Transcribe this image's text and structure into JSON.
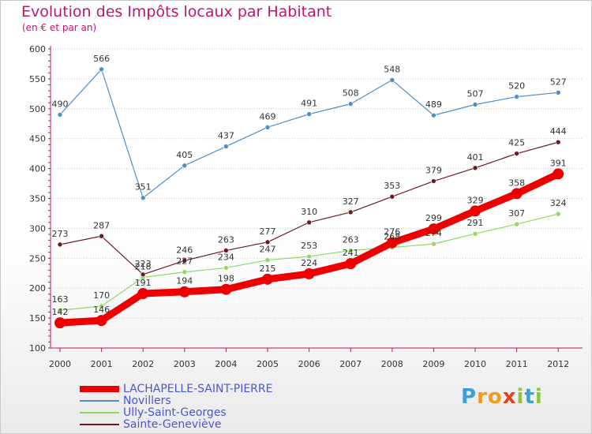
{
  "header": {
    "title": "Evolution des Impôts locaux par Habitant",
    "subtitle": "(en € et par an)"
  },
  "brand": {
    "letters": [
      {
        "char": "P",
        "color": "#3aa0d8"
      },
      {
        "char": "r",
        "color": "#f29a1f"
      },
      {
        "char": "o",
        "color": "#f29a1f"
      },
      {
        "char": "x",
        "color": "#e3431b"
      },
      {
        "char": "i",
        "color": "#8cc63f"
      },
      {
        "char": "t",
        "color": "#3aa0d8"
      },
      {
        "char": "i",
        "color": "#8cc63f"
      }
    ]
  },
  "chart_data": {
    "type": "line",
    "title": "Evolution des Impôts locaux par Habitant",
    "subtitle": "(en € et par an)",
    "xlabel": "",
    "ylabel": "",
    "categories": [
      "2000",
      "2001",
      "2002",
      "2003",
      "2004",
      "2005",
      "2006",
      "2007",
      "2008",
      "2009",
      "2010",
      "2011",
      "2012"
    ],
    "ylim": [
      100,
      600
    ],
    "yticks": [
      "100",
      "150",
      "200",
      "250",
      "300",
      "350",
      "400",
      "450",
      "500",
      "550",
      "600"
    ],
    "grid": "horizontal dotted",
    "legend_position": "bottom-left",
    "series": [
      {
        "name": "LACHAPELLE-SAINT-PIERRE",
        "color": "#ee0000",
        "width": 9,
        "marker": 7,
        "values": [
          142,
          146,
          191,
          194,
          198,
          215,
          224,
          241,
          276,
          299,
          329,
          358,
          391
        ]
      },
      {
        "name": "Novillers",
        "color": "#4d8fc8",
        "width": 1.2,
        "marker": 3,
        "values": [
          490,
          566,
          351,
          405,
          437,
          469,
          491,
          508,
          548,
          489,
          507,
          520,
          527
        ]
      },
      {
        "name": "Ully-Saint-Georges",
        "color": "#90d860",
        "width": 1.2,
        "marker": 3,
        "values": [
          163,
          170,
          218,
          227,
          234,
          247,
          253,
          263,
          268,
          274,
          291,
          307,
          324
        ]
      },
      {
        "name": "Sainte-Geneviève",
        "color": "#6b1a22",
        "width": 1.2,
        "marker": 3,
        "values": [
          273,
          287,
          223,
          246,
          263,
          277,
          310,
          327,
          353,
          379,
          401,
          425,
          444
        ]
      }
    ]
  }
}
